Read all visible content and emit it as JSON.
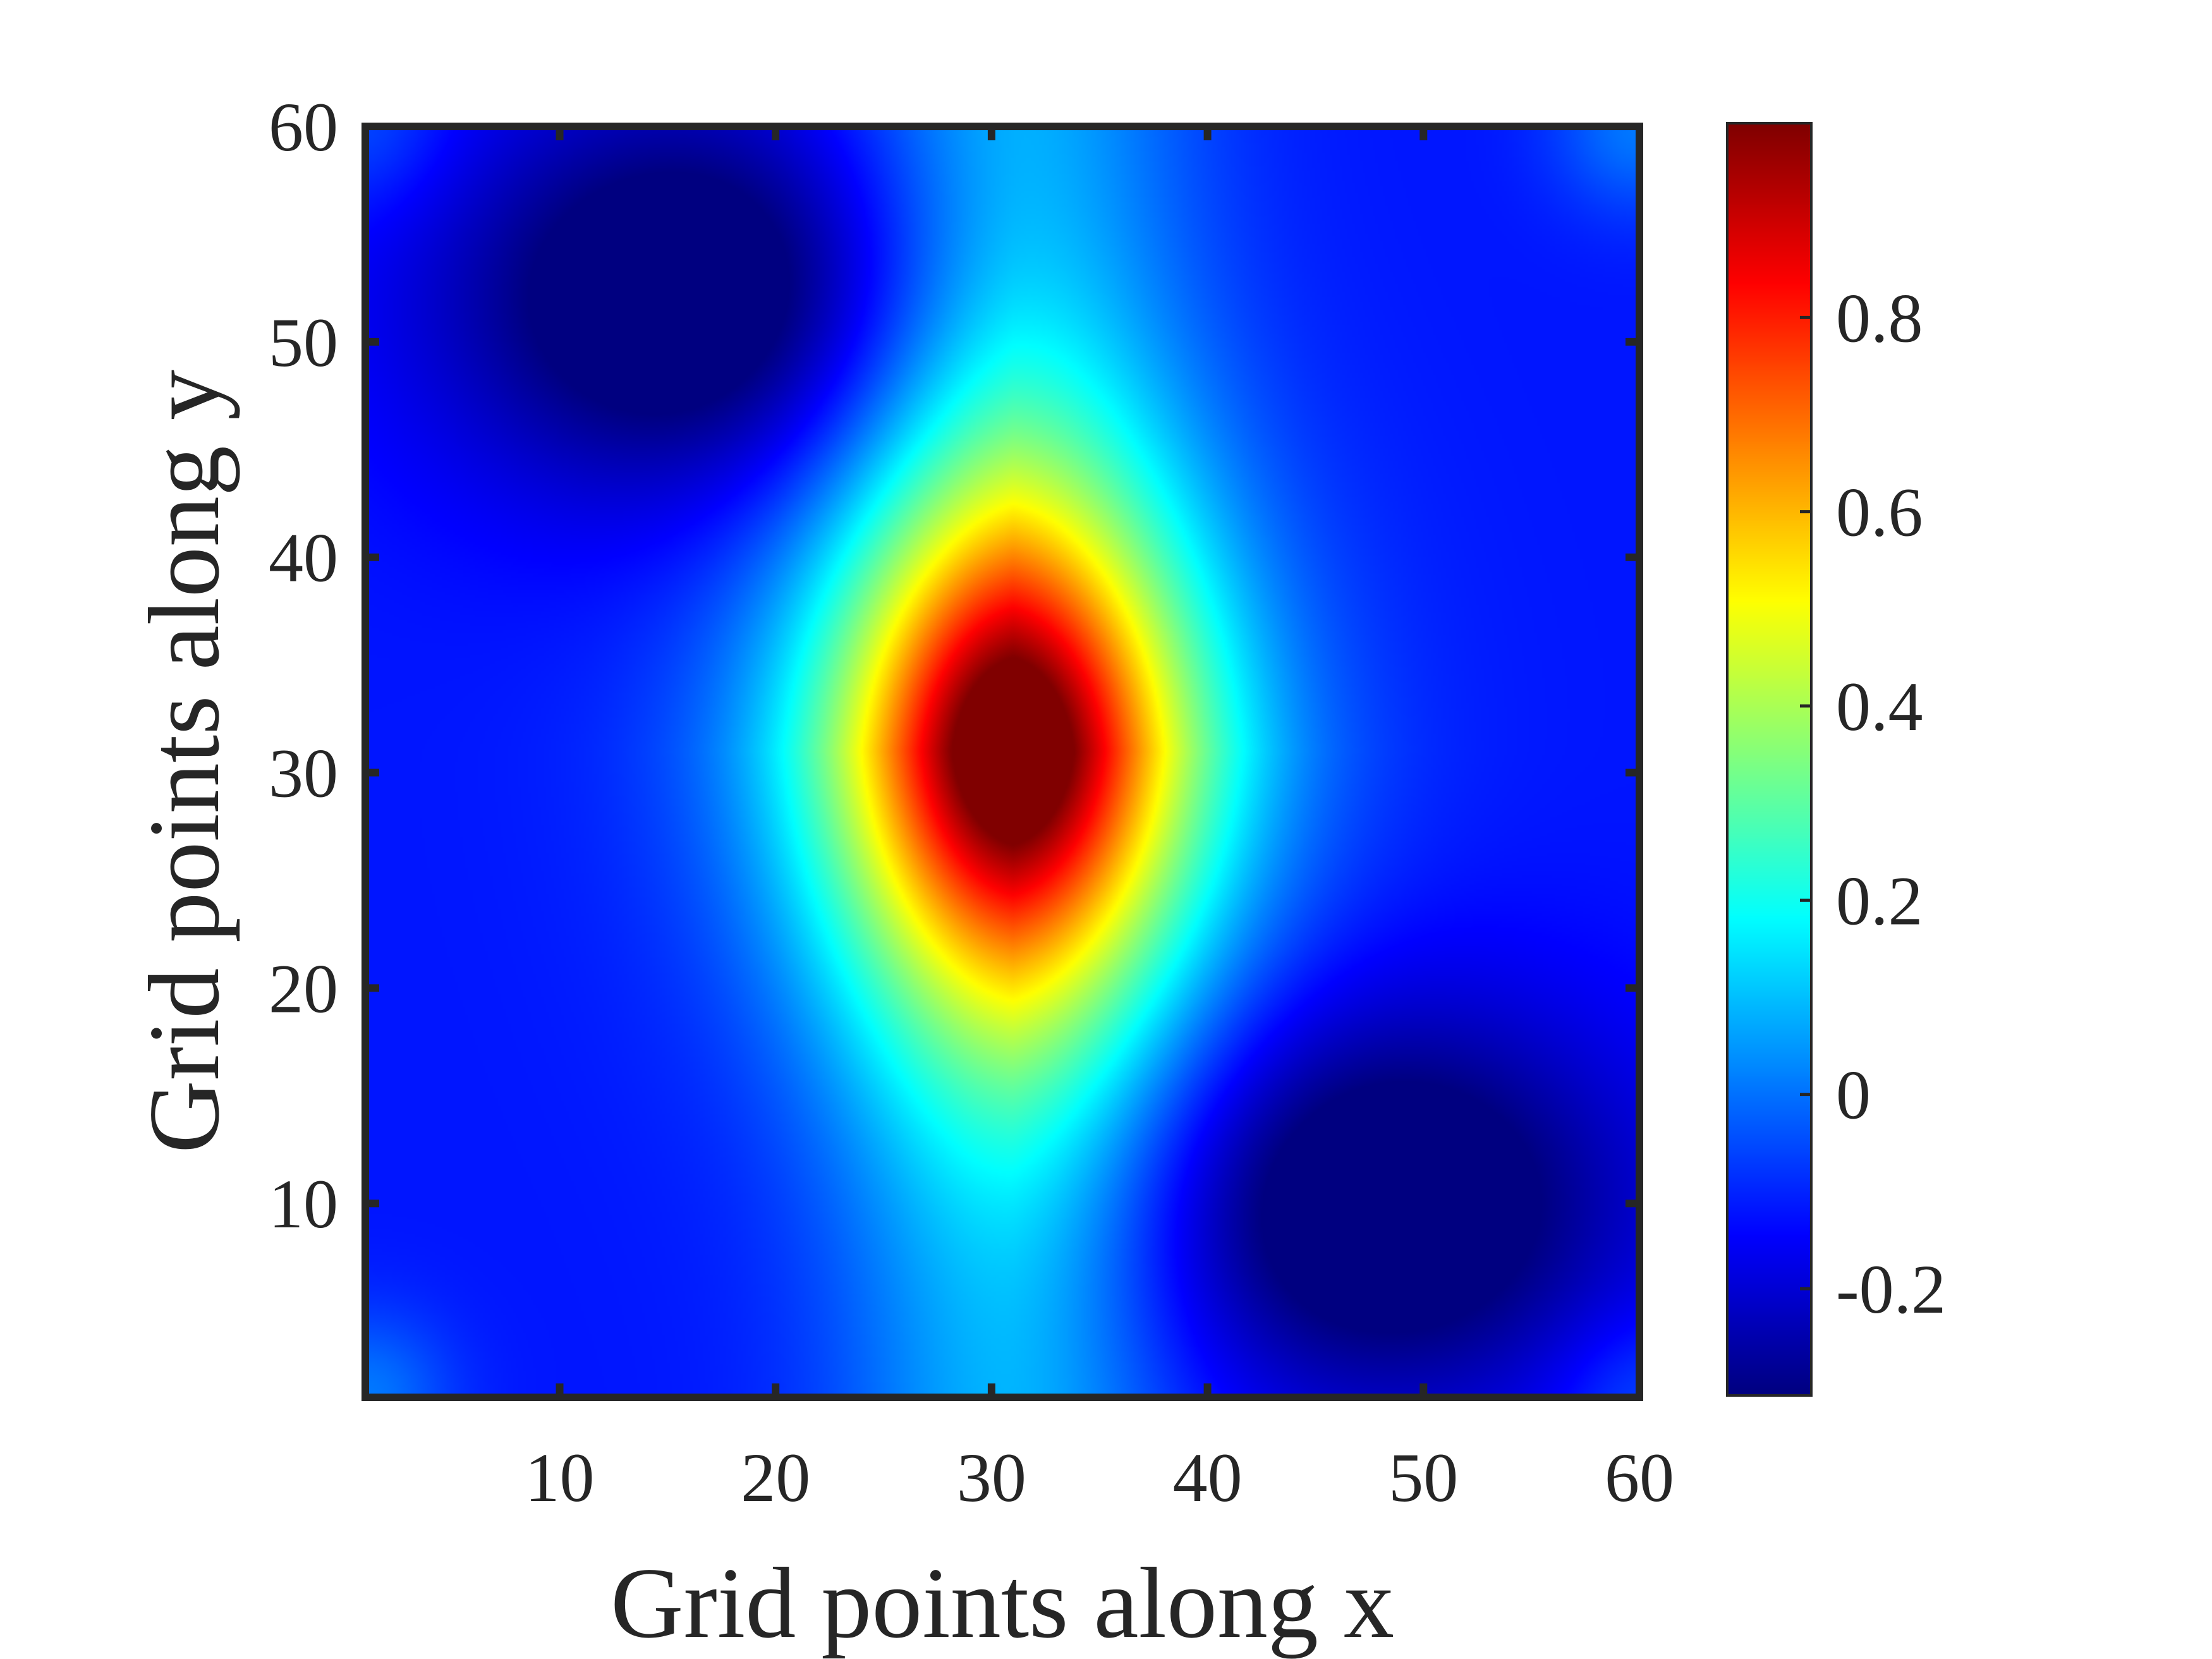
{
  "chart_data": {
    "type": "heatmap",
    "title": "",
    "xlabel": "Grid points along x",
    "ylabel": "Grid points along y",
    "xlim": [
      1,
      60
    ],
    "ylim": [
      1,
      60
    ],
    "x_ticks": [
      10,
      20,
      30,
      40,
      50,
      60
    ],
    "y_ticks": [
      10,
      20,
      30,
      40,
      50,
      60
    ],
    "x_tick_labels": [
      "10",
      "20",
      "30",
      "40",
      "50",
      "60"
    ],
    "y_tick_labels": [
      "10",
      "20",
      "30",
      "40",
      "50",
      "60"
    ],
    "colormap": "jet",
    "colorbar": {
      "range": [
        -0.31,
        1.0
      ],
      "ticks": [
        -0.2,
        0,
        0.2,
        0.4,
        0.6,
        0.8
      ],
      "tick_labels": [
        "-0.2",
        "0",
        "0.2",
        "0.4",
        "0.6",
        "0.8"
      ],
      "placement": "right"
    },
    "features": [
      {
        "kind": "peak",
        "x": 31,
        "y": 31,
        "value": 1.0
      },
      {
        "kind": "trough",
        "x": 16,
        "y": 52,
        "value": -0.3
      },
      {
        "kind": "trough",
        "x": 48,
        "y": 10,
        "value": -0.3
      },
      {
        "kind": "corner",
        "x": 1,
        "y": 1,
        "value": 0.08
      },
      {
        "kind": "corner",
        "x": 60,
        "y": 60,
        "value": 0.08
      },
      {
        "kind": "corner",
        "x": 1,
        "y": 60,
        "value": 0.05
      },
      {
        "kind": "corner",
        "x": 60,
        "y": 1,
        "value": 0.05
      }
    ],
    "grid": false
  }
}
